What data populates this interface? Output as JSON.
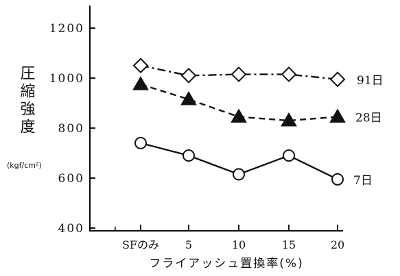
{
  "chart_data": {
    "type": "line",
    "categories": [
      "SFのみ",
      "5",
      "10",
      "15",
      "20"
    ],
    "ylabel": "圧縮強度",
    "yunit": "(kgf/cm²)",
    "xlabel": "フライアッシュ置換率(%)",
    "ylim": [
      400,
      1200
    ],
    "yticks": [
      "1200",
      "1000",
      "800",
      "600",
      "400"
    ],
    "grid": false,
    "series": [
      {
        "name": "91日",
        "marker": "diamond-open",
        "line": "dash-dot",
        "values": [
          1050,
          1010,
          1015,
          1015,
          995
        ]
      },
      {
        "name": "28日",
        "marker": "triangle-filled",
        "line": "dashed",
        "values": [
          975,
          915,
          845,
          830,
          845
        ]
      },
      {
        "name": "7日",
        "marker": "circle-open",
        "line": "solid",
        "values": [
          740,
          690,
          615,
          690,
          595
        ]
      }
    ]
  }
}
